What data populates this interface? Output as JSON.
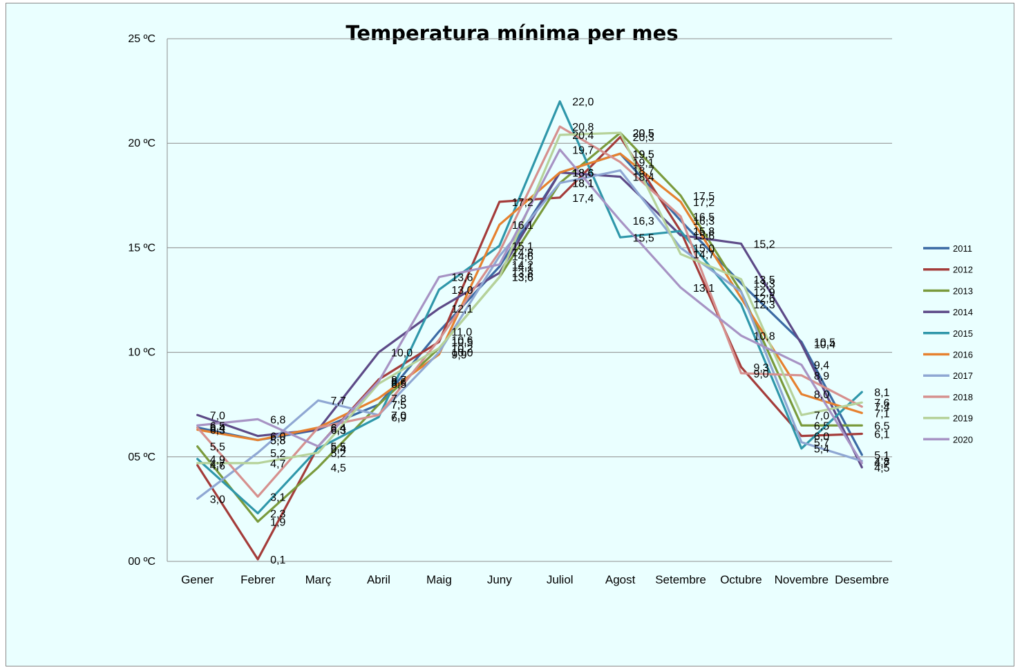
{
  "chart_data": {
    "type": "line",
    "title": "Temperatura mínima per mes",
    "xlabel": "",
    "ylabel": "",
    "ylim": [
      0,
      25
    ],
    "yticks": [
      {
        "value": 0,
        "label": "00 ºC"
      },
      {
        "value": 5,
        "label": "05 ºC"
      },
      {
        "value": 10,
        "label": "10 ºC"
      },
      {
        "value": 15,
        "label": "15 ºC"
      },
      {
        "value": 20,
        "label": "20 ºC"
      },
      {
        "value": 25,
        "label": "25 ºC"
      }
    ],
    "categories": [
      "Gener",
      "Febrer",
      "Març",
      "Abril",
      "Maig",
      "Juny",
      "Juliol",
      "Agost",
      "Setembre",
      "Octubre",
      "Novembre",
      "Desembre"
    ],
    "grid": true,
    "legend_position": "right",
    "series": [
      {
        "name": "2011",
        "color": "#3b6aa4",
        "values": [
          6.4,
          5.8,
          6.3,
          7.5,
          11.0,
          14.1,
          18.6,
          19.5,
          16.3,
          13.3,
          10.5,
          5.1
        ]
      },
      {
        "name": "2012",
        "color": "#a43c3a",
        "values": [
          4.6,
          0.1,
          5.5,
          8.7,
          10.5,
          17.2,
          17.4,
          20.3,
          15.8,
          9.3,
          6.0,
          6.1
        ]
      },
      {
        "name": "2013",
        "color": "#7a9a3c",
        "values": [
          5.5,
          1.9,
          4.5,
          7.5,
          10.2,
          13.6,
          18.1,
          20.5,
          17.5,
          12.9,
          6.5,
          6.5
        ]
      },
      {
        "name": "2014",
        "color": "#5d4a87",
        "values": [
          7.0,
          6.0,
          6.3,
          10.0,
          12.1,
          13.8,
          18.6,
          18.4,
          15.6,
          15.2,
          10.4,
          4.5
        ]
      },
      {
        "name": "2015",
        "color": "#2f97aa",
        "values": [
          4.9,
          2.3,
          5.4,
          6.9,
          13.0,
          15.1,
          22.0,
          15.5,
          15.8,
          12.3,
          5.4,
          8.1
        ]
      },
      {
        "name": "2016",
        "color": "#e6812f",
        "values": [
          6.3,
          5.8,
          6.4,
          7.8,
          9.9,
          16.1,
          18.6,
          19.5,
          17.2,
          12.6,
          8.0,
          7.1
        ]
      },
      {
        "name": "2017",
        "color": "#8fa7d3",
        "values": [
          3.0,
          5.2,
          7.7,
          7.0,
          10.0,
          14.6,
          18.1,
          18.7,
          15.0,
          12.9,
          5.7,
          4.8
        ]
      },
      {
        "name": "2018",
        "color": "#d6908e",
        "values": [
          6.4,
          3.1,
          6.4,
          7.0,
          10.6,
          14.8,
          20.8,
          19.1,
          16.5,
          9.0,
          8.9,
          7.4
        ]
      },
      {
        "name": "2019",
        "color": "#b6d29a",
        "values": [
          4.7,
          4.7,
          5.2,
          8.5,
          10.2,
          13.6,
          20.4,
          20.5,
          14.7,
          13.5,
          7.0,
          7.6
        ]
      },
      {
        "name": "2020",
        "color": "#a793c4",
        "values": [
          6.5,
          6.8,
          5.5,
          8.6,
          13.6,
          14.2,
          19.7,
          16.3,
          13.1,
          10.8,
          9.4,
          4.7
        ]
      }
    ]
  }
}
